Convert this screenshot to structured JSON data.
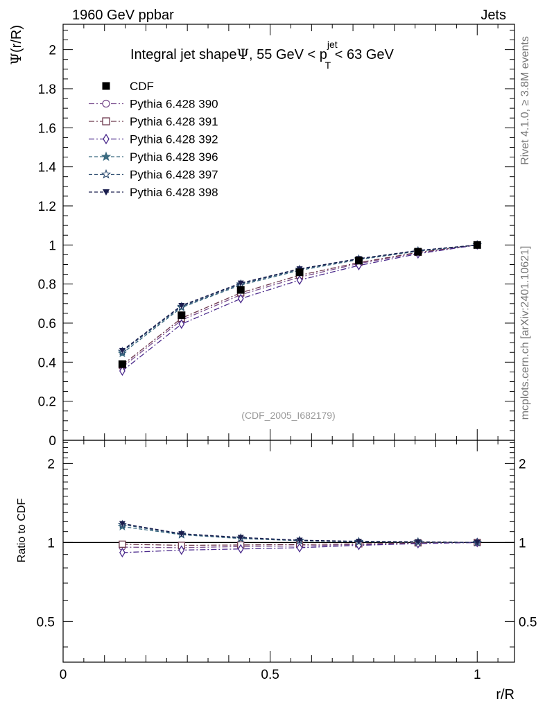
{
  "header": {
    "experiment": "1960 GeV ppbar",
    "category": "Jets",
    "rivet_text": "Rivet 4.1.0, ≥ 3.8M events",
    "mcplots_text": "mcplots.cern.ch [arXiv:2401.10621]",
    "analysis_id": "(CDF_2005_I682179)"
  },
  "chart_data": [
    {
      "type": "line",
      "panel": "main",
      "title_prefix": "Integral jet shape",
      "title_symbol": "Ψ",
      "title_range_lo": ", 55 GeV < p",
      "title_sup": "jet",
      "title_sub": "T",
      "title_range_hi": " < 63 GeV",
      "ylabel_symbol": "Ψ",
      "ylabel_rest": "(r/R)",
      "xlabel": "r/R",
      "xlim": [
        0,
        1.09
      ],
      "ylim": [
        0,
        2.13
      ],
      "y_ticks": [
        0,
        0.2,
        0.4,
        0.6,
        0.8,
        1,
        1.2,
        1.4,
        1.6,
        1.8,
        2
      ],
      "y_tick_labels": [
        "0",
        "0.2",
        "0.4",
        "0.6",
        "0.8",
        "1",
        "1.2",
        "1.4",
        "1.6",
        "1.8",
        "2"
      ],
      "x": [
        0.143,
        0.286,
        0.429,
        0.571,
        0.714,
        0.857,
        1.0
      ],
      "series": [
        {
          "name": "CDF",
          "color": "#000000",
          "marker": "square-filled",
          "dash": "none",
          "values": [
            0.39,
            0.64,
            0.77,
            0.86,
            0.92,
            0.965,
            1.0
          ]
        },
        {
          "name": "Pythia 6.428 390",
          "color": "#7a4e8e",
          "marker": "circle-open",
          "dash": "8,3,2,3",
          "values": [
            0.375,
            0.615,
            0.745,
            0.835,
            0.905,
            0.96,
            1.0
          ]
        },
        {
          "name": "Pythia 6.428 391",
          "color": "#6e3a4e",
          "marker": "square-open",
          "dash": "8,3,2,3",
          "values": [
            0.385,
            0.625,
            0.755,
            0.845,
            0.91,
            0.962,
            1.0
          ]
        },
        {
          "name": "Pythia 6.428 392",
          "color": "#4b2a8c",
          "marker": "diamond-open",
          "dash": "8,3,2,3",
          "values": [
            0.355,
            0.595,
            0.725,
            0.82,
            0.895,
            0.955,
            1.0
          ]
        },
        {
          "name": "Pythia 6.428 396",
          "color": "#3a6a80",
          "marker": "star-filled",
          "dash": "5,3",
          "values": [
            0.445,
            0.68,
            0.795,
            0.87,
            0.925,
            0.968,
            1.0
          ]
        },
        {
          "name": "Pythia 6.428 397",
          "color": "#2a4a6e",
          "marker": "star-open",
          "dash": "5,3",
          "values": [
            0.455,
            0.685,
            0.8,
            0.875,
            0.928,
            0.97,
            1.0
          ]
        },
        {
          "name": "Pythia 6.428 398",
          "color": "#1a1e4e",
          "marker": "triangle-down-filled",
          "dash": "5,3",
          "values": [
            0.46,
            0.69,
            0.805,
            0.878,
            0.93,
            0.972,
            1.0
          ]
        }
      ]
    },
    {
      "type": "line",
      "panel": "ratio",
      "ylabel": "Ratio to CDF",
      "yscale": "log",
      "ylim": [
        0.35,
        2.45
      ],
      "y_ticks": [
        0.5,
        1,
        2
      ],
      "y_tick_labels": [
        "0.5",
        "1",
        "2"
      ],
      "x_ticks": [
        0,
        0.5,
        1
      ],
      "x_tick_labels": [
        "0",
        "0.5",
        "1"
      ],
      "reference_line": 1,
      "x": [
        0.143,
        0.286,
        0.429,
        0.571,
        0.714,
        0.857,
        1.0
      ],
      "series": [
        {
          "name": "Pythia 6.428 390",
          "values": [
            0.96,
            0.955,
            0.965,
            0.97,
            0.982,
            0.994,
            1.0
          ]
        },
        {
          "name": "Pythia 6.428 391",
          "values": [
            0.985,
            0.975,
            0.978,
            0.982,
            0.988,
            0.996,
            1.0
          ]
        },
        {
          "name": "Pythia 6.428 392",
          "values": [
            0.915,
            0.935,
            0.945,
            0.955,
            0.975,
            0.99,
            1.0
          ]
        },
        {
          "name": "Pythia 6.428 396",
          "values": [
            1.15,
            1.07,
            1.035,
            1.015,
            1.005,
            1.003,
            1.0
          ]
        },
        {
          "name": "Pythia 6.428 397",
          "values": [
            1.17,
            1.075,
            1.04,
            1.018,
            1.008,
            1.005,
            1.0
          ]
        },
        {
          "name": "Pythia 6.428 398",
          "values": [
            1.18,
            1.08,
            1.045,
            1.02,
            1.01,
            1.006,
            1.0
          ]
        }
      ]
    }
  ]
}
